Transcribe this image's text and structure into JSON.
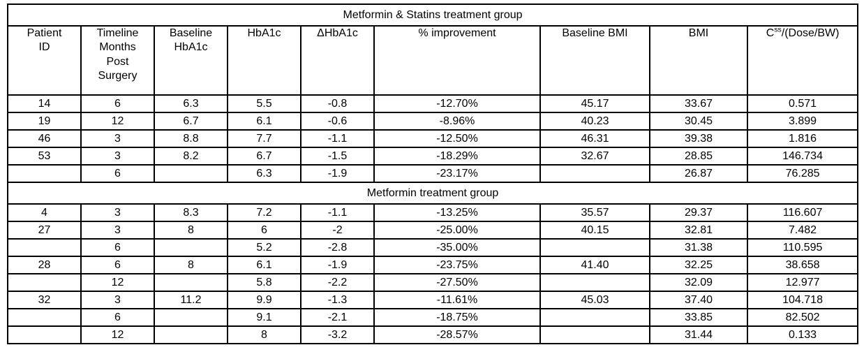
{
  "table": {
    "columns": [
      {
        "key": "patient-id",
        "label": "Patient\nID"
      },
      {
        "key": "timeline-months",
        "label": "Timeline\nMonths\nPost\nSurgery"
      },
      {
        "key": "baseline-hba1c",
        "label": "Baseline\nHbA1c"
      },
      {
        "key": "hba1c",
        "label": "HbA1c"
      },
      {
        "key": "delta-hba1c",
        "label": "ΔHbA1c"
      },
      {
        "key": "pct-improvement",
        "label": "% improvement"
      },
      {
        "key": "baseline-bmi",
        "label": "Baseline BMI"
      },
      {
        "key": "bmi",
        "label": "BMI"
      },
      {
        "key": "css-dose-bw",
        "label": "Css/(Dose/BW)",
        "parts": {
          "pre": "C",
          "sup": "ss",
          "post": "/(Dose/BW)"
        }
      }
    ],
    "sections": [
      {
        "title": "Metformin & Statins treatment group",
        "rows": [
          [
            "14",
            "6",
            "6.3",
            "5.5",
            "-0.8",
            "-12.70%",
            "45.17",
            "33.67",
            "0.571"
          ],
          [
            "19",
            "12",
            "6.7",
            "6.1",
            "-0.6",
            "-8.96%",
            "40.23",
            "30.45",
            "3.899"
          ],
          [
            "46",
            "3",
            "8.8",
            "7.7",
            "-1.1",
            "-12.50%",
            "46.31",
            "39.38",
            "1.816"
          ],
          [
            "53",
            "3",
            "8.2",
            "6.7",
            "-1.5",
            "-18.29%",
            "32.67",
            "28.85",
            "146.734"
          ],
          [
            "",
            "6",
            "",
            "6.3",
            "-1.9",
            "-23.17%",
            "",
            "26.87",
            "76.285"
          ]
        ]
      },
      {
        "title": "Metformin treatment group",
        "rows": [
          [
            "4",
            "3",
            "8.3",
            "7.2",
            "-1.1",
            "-13.25%",
            "35.57",
            "29.37",
            "116.607"
          ],
          [
            "27",
            "3",
            "8",
            "6",
            "-2",
            "-25.00%",
            "40.15",
            "32.81",
            "7.482"
          ],
          [
            "",
            "6",
            "",
            "5.2",
            "-2.8",
            "-35.00%",
            "",
            "31.38",
            "110.595"
          ],
          [
            "28",
            "6",
            "8",
            "6.1",
            "-1.9",
            "-23.75%",
            "41.40",
            "32.25",
            "38.658"
          ],
          [
            "",
            "12",
            "",
            "5.8",
            "-2.2",
            "-27.50%",
            "",
            "32.09",
            "12.977"
          ],
          [
            "32",
            "3",
            "11.2",
            "9.9",
            "-1.3",
            "-11.61%",
            "45.03",
            "37.40",
            "104.718"
          ],
          [
            "",
            "6",
            "",
            "9.1",
            "-2.1",
            "-18.75%",
            "",
            "33.85",
            "82.502"
          ],
          [
            "",
            "12",
            "",
            "8",
            "-3.2",
            "-28.57%",
            "",
            "31.44",
            "0.133"
          ]
        ]
      }
    ]
  }
}
